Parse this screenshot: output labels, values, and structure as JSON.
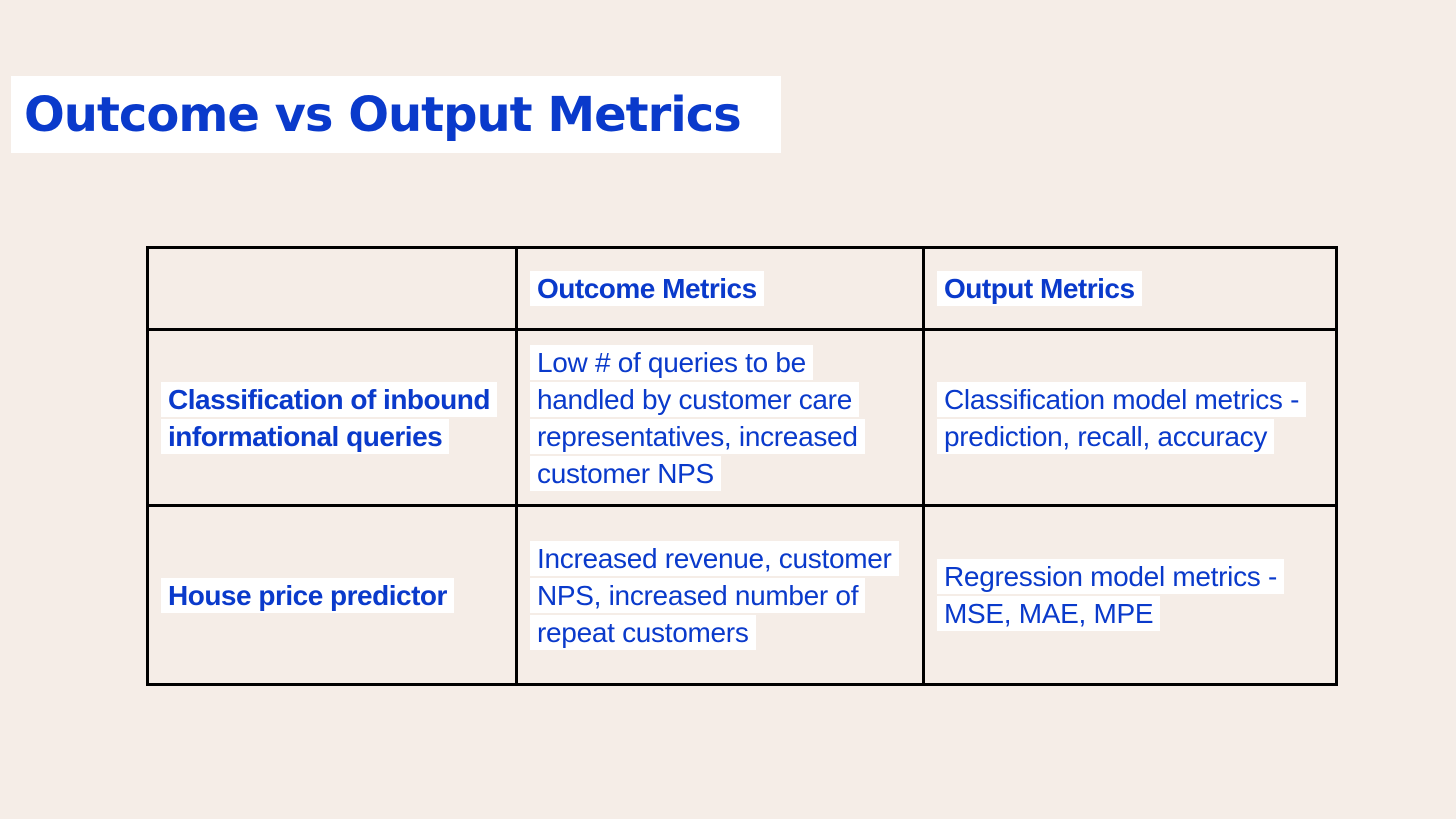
{
  "title": "Outcome vs Output Metrics",
  "table": {
    "headers": [
      "",
      "Outcome Metrics",
      "Output Metrics"
    ],
    "rows": [
      {
        "label": "Classification of inbound informational queries",
        "outcome": "Low # of queries to be handled by customer care representatives, increased customer NPS",
        "output": "Classification model metrics - prediction, recall, accuracy"
      },
      {
        "label": "House price predictor",
        "outcome": "Increased revenue, customer NPS, increased number of repeat customers",
        "output": "Regression model metrics - MSE, MAE, MPE"
      }
    ]
  },
  "colors": {
    "background": "#f5ede7",
    "text": "#0a3acb",
    "highlight": "#ffffff",
    "border": "#000000"
  }
}
